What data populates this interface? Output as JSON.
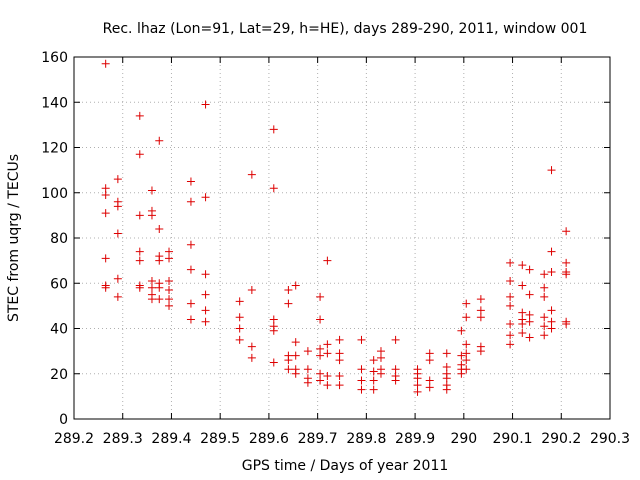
{
  "chart_data": {
    "type": "scatter",
    "title": "Rec. lhaz (Lon=91, Lat=29, h=HE), days 289-290, 2011, window 001",
    "xlabel": "GPS time / Days of year 2011",
    "ylabel": "STEC from uqrg / TECUs",
    "xlim": [
      289.2,
      290.3
    ],
    "ylim": [
      0,
      160
    ],
    "xticks": [
      289.2,
      289.3,
      289.4,
      289.5,
      289.6,
      289.7,
      289.8,
      289.9,
      290,
      290.1,
      290.2,
      290.3
    ],
    "xtick_labels": [
      "289.2",
      "289.3",
      "289.4",
      "289.5",
      "289.6",
      "289.7",
      "289.8",
      "289.9",
      "290",
      "290.1",
      "290.2",
      "290.3"
    ],
    "yticks": [
      0,
      20,
      40,
      60,
      80,
      100,
      120,
      140,
      160
    ],
    "ytick_labels": [
      "0",
      "20",
      "40",
      "60",
      "80",
      "100",
      "120",
      "140",
      "160"
    ],
    "grid": true,
    "marker": "+",
    "color": "#dd0000",
    "series": [
      {
        "points": [
          [
            289.265,
            157
          ],
          [
            289.265,
            102
          ],
          [
            289.265,
            99
          ],
          [
            289.265,
            91
          ],
          [
            289.265,
            71
          ],
          [
            289.265,
            59
          ],
          [
            289.265,
            58
          ],
          [
            289.29,
            106
          ],
          [
            289.29,
            96
          ],
          [
            289.29,
            94
          ],
          [
            289.29,
            82
          ],
          [
            289.29,
            62
          ],
          [
            289.29,
            54
          ],
          [
            289.335,
            134
          ],
          [
            289.335,
            117
          ],
          [
            289.335,
            90
          ],
          [
            289.335,
            74
          ],
          [
            289.335,
            70
          ],
          [
            289.335,
            59
          ],
          [
            289.335,
            58
          ],
          [
            289.36,
            101
          ],
          [
            289.36,
            92
          ],
          [
            289.36,
            90
          ],
          [
            289.36,
            61
          ],
          [
            289.36,
            58
          ],
          [
            289.36,
            55
          ],
          [
            289.36,
            53
          ],
          [
            289.375,
            123
          ],
          [
            289.375,
            84
          ],
          [
            289.375,
            72
          ],
          [
            289.375,
            70
          ],
          [
            289.375,
            60
          ],
          [
            289.375,
            58
          ],
          [
            289.375,
            53
          ],
          [
            289.395,
            74
          ],
          [
            289.395,
            71
          ],
          [
            289.395,
            61
          ],
          [
            289.395,
            57
          ],
          [
            289.395,
            53
          ],
          [
            289.395,
            50
          ],
          [
            289.44,
            105
          ],
          [
            289.44,
            96
          ],
          [
            289.44,
            77
          ],
          [
            289.44,
            66
          ],
          [
            289.44,
            51
          ],
          [
            289.44,
            44
          ],
          [
            289.47,
            139
          ],
          [
            289.47,
            98
          ],
          [
            289.47,
            64
          ],
          [
            289.47,
            55
          ],
          [
            289.47,
            48
          ],
          [
            289.47,
            43
          ],
          [
            289.54,
            52
          ],
          [
            289.54,
            45
          ],
          [
            289.54,
            40
          ],
          [
            289.54,
            35
          ],
          [
            289.565,
            108
          ],
          [
            289.565,
            57
          ],
          [
            289.565,
            32
          ],
          [
            289.565,
            27
          ],
          [
            289.61,
            128
          ],
          [
            289.61,
            102
          ],
          [
            289.61,
            44
          ],
          [
            289.61,
            41
          ],
          [
            289.61,
            39
          ],
          [
            289.61,
            25
          ],
          [
            289.64,
            57
          ],
          [
            289.64,
            51
          ],
          [
            289.64,
            28
          ],
          [
            289.64,
            26
          ],
          [
            289.64,
            22
          ],
          [
            289.655,
            59
          ],
          [
            289.655,
            34
          ],
          [
            289.655,
            28
          ],
          [
            289.655,
            22
          ],
          [
            289.655,
            20
          ],
          [
            289.68,
            30
          ],
          [
            289.68,
            22
          ],
          [
            289.68,
            18
          ],
          [
            289.68,
            16
          ],
          [
            289.705,
            54
          ],
          [
            289.705,
            44
          ],
          [
            289.705,
            31
          ],
          [
            289.705,
            28
          ],
          [
            289.705,
            20
          ],
          [
            289.705,
            17
          ],
          [
            289.72,
            70
          ],
          [
            289.72,
            33
          ],
          [
            289.72,
            29
          ],
          [
            289.72,
            19
          ],
          [
            289.72,
            15
          ],
          [
            289.745,
            35
          ],
          [
            289.745,
            29
          ],
          [
            289.745,
            26
          ],
          [
            289.745,
            19
          ],
          [
            289.745,
            15
          ],
          [
            289.79,
            35
          ],
          [
            289.79,
            22
          ],
          [
            289.79,
            17
          ],
          [
            289.79,
            13
          ],
          [
            289.815,
            26
          ],
          [
            289.815,
            21
          ],
          [
            289.815,
            17
          ],
          [
            289.815,
            13
          ],
          [
            289.83,
            30
          ],
          [
            289.83,
            27
          ],
          [
            289.83,
            22
          ],
          [
            289.83,
            20
          ],
          [
            289.86,
            35
          ],
          [
            289.86,
            22
          ],
          [
            289.86,
            19
          ],
          [
            289.86,
            17
          ],
          [
            289.905,
            22
          ],
          [
            289.905,
            20
          ],
          [
            289.905,
            18
          ],
          [
            289.905,
            15
          ],
          [
            289.905,
            12
          ],
          [
            289.93,
            29
          ],
          [
            289.93,
            26
          ],
          [
            289.93,
            17
          ],
          [
            289.93,
            14
          ],
          [
            289.965,
            29
          ],
          [
            289.965,
            23
          ],
          [
            289.965,
            20
          ],
          [
            289.965,
            18
          ],
          [
            289.965,
            15
          ],
          [
            289.965,
            13
          ],
          [
            289.995,
            39
          ],
          [
            289.995,
            28
          ],
          [
            289.995,
            24
          ],
          [
            289.995,
            22
          ],
          [
            289.995,
            20
          ],
          [
            290.005,
            51
          ],
          [
            290.005,
            45
          ],
          [
            290.005,
            33
          ],
          [
            290.005,
            29
          ],
          [
            290.005,
            26
          ],
          [
            290.005,
            22
          ],
          [
            290.035,
            53
          ],
          [
            290.035,
            48
          ],
          [
            290.035,
            45
          ],
          [
            290.035,
            32
          ],
          [
            290.035,
            30
          ],
          [
            290.095,
            69
          ],
          [
            290.095,
            61
          ],
          [
            290.095,
            54
          ],
          [
            290.095,
            50
          ],
          [
            290.095,
            42
          ],
          [
            290.095,
            37
          ],
          [
            290.095,
            33
          ],
          [
            290.12,
            68
          ],
          [
            290.12,
            59
          ],
          [
            290.12,
            47
          ],
          [
            290.12,
            44
          ],
          [
            290.12,
            42
          ],
          [
            290.12,
            38
          ],
          [
            290.135,
            66
          ],
          [
            290.135,
            55
          ],
          [
            290.135,
            46
          ],
          [
            290.135,
            43
          ],
          [
            290.135,
            36
          ],
          [
            290.165,
            64
          ],
          [
            290.165,
            58
          ],
          [
            290.165,
            54
          ],
          [
            290.165,
            45
          ],
          [
            290.165,
            41
          ],
          [
            290.165,
            37
          ],
          [
            290.18,
            110
          ],
          [
            290.18,
            74
          ],
          [
            290.18,
            65
          ],
          [
            290.18,
            48
          ],
          [
            290.18,
            43
          ],
          [
            290.18,
            40
          ],
          [
            290.21,
            83
          ],
          [
            290.21,
            69
          ],
          [
            290.21,
            65
          ],
          [
            290.21,
            64
          ],
          [
            290.21,
            43
          ],
          [
            290.21,
            42
          ]
        ]
      }
    ]
  }
}
